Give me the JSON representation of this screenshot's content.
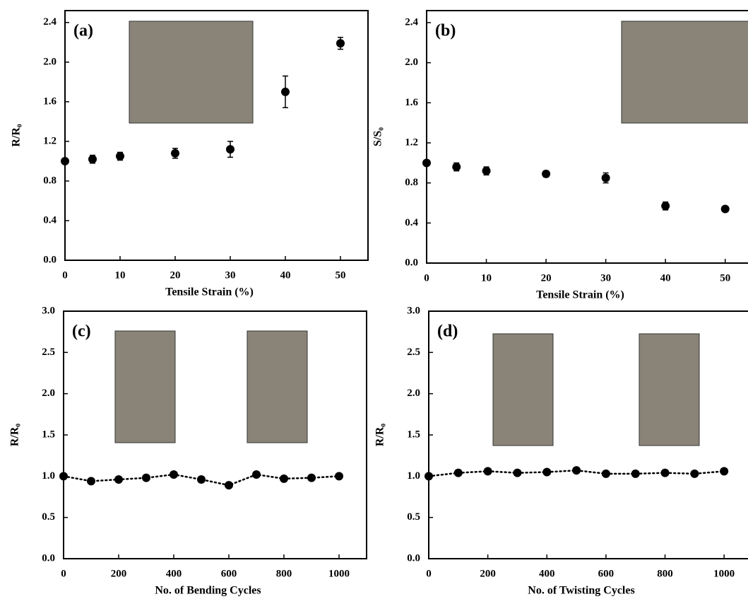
{
  "chart_data": [
    {
      "type": "scatter",
      "annotation": "(a)",
      "xlabel": "Tensile Strain (%)",
      "ylabel": "R/R₀",
      "color": "#000000",
      "x": [
        0,
        5,
        10,
        20,
        30,
        40,
        50
      ],
      "values": [
        1.0,
        1.02,
        1.05,
        1.08,
        1.12,
        1.7,
        2.19
      ],
      "errors": [
        0,
        0.04,
        0.04,
        0.05,
        0.08,
        0.16,
        0.06
      ],
      "xlim": [
        0,
        55
      ],
      "ylim": [
        0,
        2.52
      ],
      "xticks": [
        0,
        10,
        20,
        30,
        40,
        50
      ],
      "yticks": [
        {
          "value": 0,
          "label": "0.0"
        },
        0.4,
        0.8,
        1.2,
        1.6,
        {
          "value": 2,
          "label": "2.0"
        },
        2.4
      ]
    },
    {
      "type": "scatter",
      "annotation": "(b)",
      "xlabel": "Tensile Strain (%)",
      "ylabel": "S/S₀",
      "color": "#000000",
      "x": [
        0,
        5,
        10,
        20,
        30,
        40,
        50
      ],
      "values": [
        1.0,
        0.96,
        0.92,
        0.89,
        0.85,
        0.57,
        0.54
      ],
      "errors": [
        0,
        0.04,
        0.04,
        0.03,
        0.05,
        0.04,
        0.01
      ],
      "xlim": [
        0,
        55
      ],
      "ylim": [
        0,
        2.52
      ],
      "xticks": [
        0,
        10,
        20,
        30,
        40,
        50
      ],
      "yticks": [
        {
          "value": 0,
          "label": "0.0"
        },
        0.4,
        0.8,
        1.2,
        1.6,
        {
          "value": 2,
          "label": "2.0"
        },
        2.4
      ]
    },
    {
      "type": "line",
      "annotation": "(c)",
      "xlabel": "No. of Bending Cycles",
      "ylabel": "R/R₀",
      "color": "#000000",
      "x": [
        0,
        100,
        200,
        300,
        400,
        500,
        600,
        700,
        800,
        900,
        1000
      ],
      "values": [
        1.0,
        0.94,
        0.96,
        0.98,
        1.02,
        0.96,
        0.89,
        1.02,
        0.97,
        0.98,
        1.0
      ],
      "xlim": [
        0,
        1100
      ],
      "ylim": [
        0,
        3
      ],
      "xticks": [
        0,
        200,
        400,
        600,
        800,
        1000
      ],
      "yticks": [
        {
          "value": 0,
          "label": "0.0"
        },
        0.5,
        {
          "value": 1,
          "label": "1.0"
        },
        1.5,
        {
          "value": 2,
          "label": "2.0"
        },
        2.5,
        {
          "value": 3,
          "label": "3.0"
        }
      ]
    },
    {
      "type": "line",
      "annotation": "(d)",
      "xlabel": "No. of Twisting Cycles",
      "ylabel": "R/R₀",
      "color": "#000000",
      "x": [
        0,
        100,
        200,
        300,
        400,
        500,
        600,
        700,
        800,
        900,
        1000
      ],
      "values": [
        1.0,
        1.04,
        1.06,
        1.04,
        1.05,
        1.07,
        1.03,
        1.03,
        1.04,
        1.03,
        1.06
      ],
      "xlim": [
        0,
        1100
      ],
      "ylim": [
        0,
        3
      ],
      "xticks": [
        0,
        200,
        400,
        600,
        800,
        1000
      ],
      "yticks": [
        {
          "value": 0,
          "label": "0.0"
        },
        0.5,
        {
          "value": 1,
          "label": "1.0"
        },
        1.5,
        {
          "value": 2,
          "label": "2.0"
        },
        2.5,
        {
          "value": 3,
          "label": "3.0"
        }
      ]
    }
  ]
}
